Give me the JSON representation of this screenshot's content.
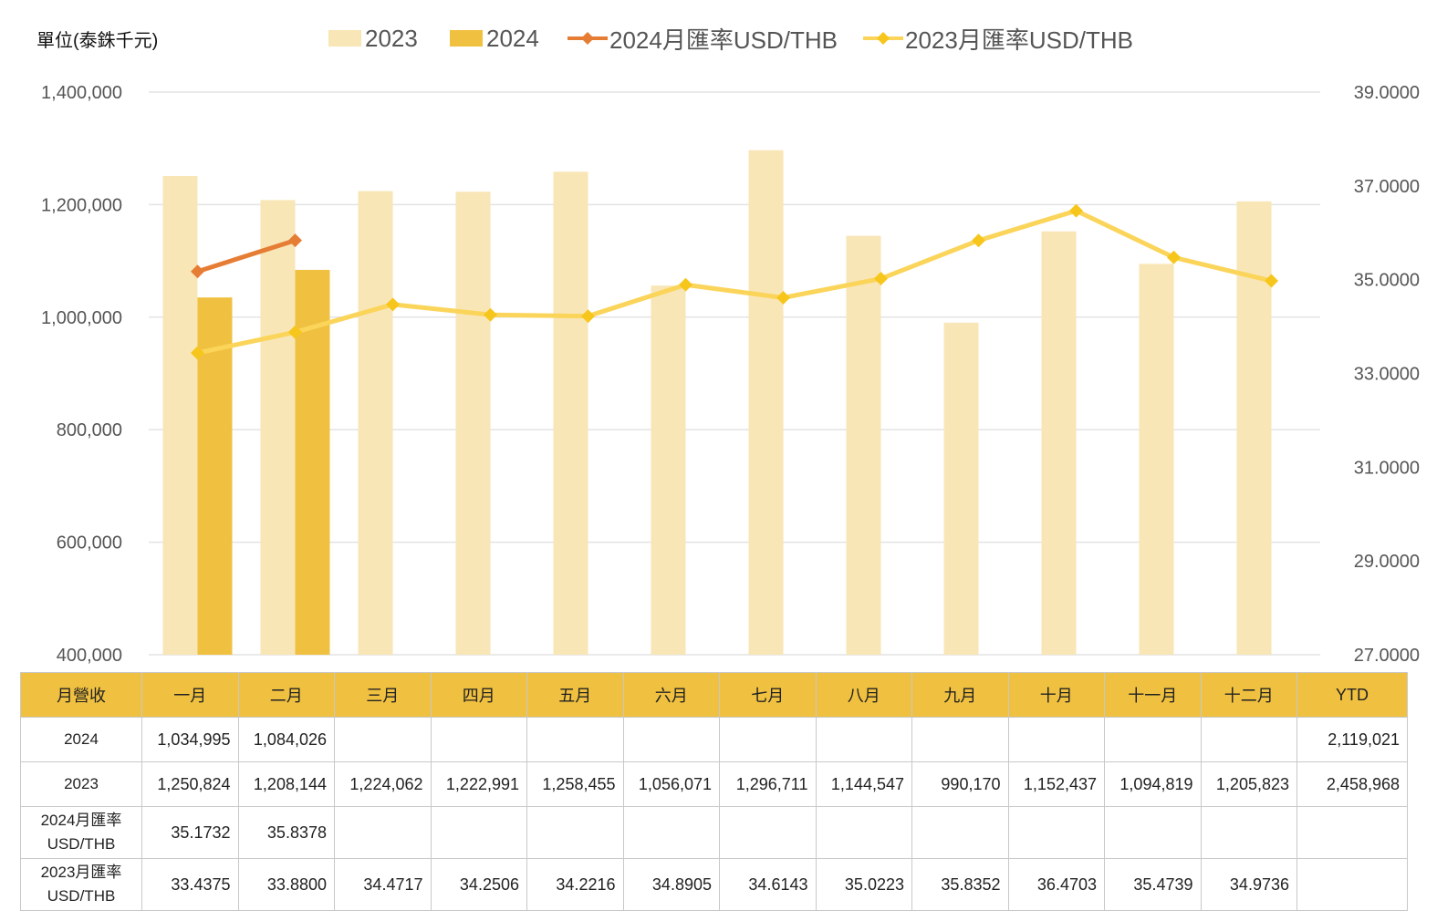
{
  "unit_label": "單位(泰銖千元)",
  "legend": {
    "s2023": "2023",
    "s2024": "2024",
    "r2024": "2024月匯率USD/THB",
    "r2023": "2023月匯率USD/THB"
  },
  "colors": {
    "bar2023": "#f9e6b7",
    "bar2024": "#f0c140",
    "line2024": "#e67d34",
    "line2023": "#fbd45a",
    "marker2023": "#f7c61c",
    "grid": "#e3e3e3",
    "header": "#f0c040"
  },
  "chart_data": {
    "type": "bar",
    "categories": [
      "一月",
      "二月",
      "三月",
      "四月",
      "五月",
      "六月",
      "七月",
      "八月",
      "九月",
      "十月",
      "十一月",
      "十二月"
    ],
    "series": [
      {
        "name": "2023",
        "type": "bar",
        "axis": "left",
        "values": [
          1250824,
          1208144,
          1224062,
          1222991,
          1258455,
          1056071,
          1296711,
          1144547,
          990170,
          1152437,
          1094819,
          1205823
        ]
      },
      {
        "name": "2024",
        "type": "bar",
        "axis": "left",
        "values": [
          1034995,
          1084026,
          null,
          null,
          null,
          null,
          null,
          null,
          null,
          null,
          null,
          null
        ]
      },
      {
        "name": "2024月匯率USD/THB",
        "type": "line",
        "axis": "right",
        "values": [
          35.1732,
          35.8378,
          null,
          null,
          null,
          null,
          null,
          null,
          null,
          null,
          null,
          null
        ]
      },
      {
        "name": "2023月匯率USD/THB",
        "type": "line",
        "axis": "right",
        "values": [
          33.4375,
          33.88,
          34.4717,
          34.2506,
          34.2216,
          34.8905,
          34.6143,
          35.0223,
          35.8352,
          36.4703,
          35.4739,
          34.9736
        ]
      }
    ],
    "y_left": {
      "min": 400000,
      "max": 1400000,
      "ticks": [
        "400,000",
        "600,000",
        "800,000",
        "1,000,000",
        "1,200,000",
        "1,400,000"
      ]
    },
    "y_right": {
      "min": 27,
      "max": 39,
      "ticks": [
        "27.0000",
        "29.0000",
        "31.0000",
        "33.0000",
        "35.0000",
        "37.0000",
        "39.0000"
      ]
    },
    "grid": true,
    "legend_position": "top"
  },
  "table": {
    "headers": [
      "月營收",
      "一月",
      "二月",
      "三月",
      "四月",
      "五月",
      "六月",
      "七月",
      "八月",
      "九月",
      "十月",
      "十一月",
      "十二月",
      "YTD"
    ],
    "rows": [
      {
        "label": "2024",
        "cells": [
          "1,034,995",
          "1,084,026",
          "",
          "",
          "",
          "",
          "",
          "",
          "",
          "",
          "",
          "",
          "2,119,021"
        ]
      },
      {
        "label": "2023",
        "cells": [
          "1,250,824",
          "1,208,144",
          "1,224,062",
          "1,222,991",
          "1,258,455",
          "1,056,071",
          "1,296,711",
          "1,144,547",
          "990,170",
          "1,152,437",
          "1,094,819",
          "1,205,823",
          "2,458,968"
        ]
      },
      {
        "label_line1": "2024月匯率",
        "label_line2": "USD/THB",
        "cells": [
          "35.1732",
          "35.8378",
          "",
          "",
          "",
          "",
          "",
          "",
          "",
          "",
          "",
          "",
          ""
        ]
      },
      {
        "label_line1": "2023月匯率",
        "label_line2": "USD/THB",
        "cells": [
          "33.4375",
          "33.8800",
          "34.4717",
          "34.2506",
          "34.2216",
          "34.8905",
          "34.6143",
          "35.0223",
          "35.8352",
          "36.4703",
          "35.4739",
          "34.9736",
          ""
        ]
      }
    ]
  }
}
